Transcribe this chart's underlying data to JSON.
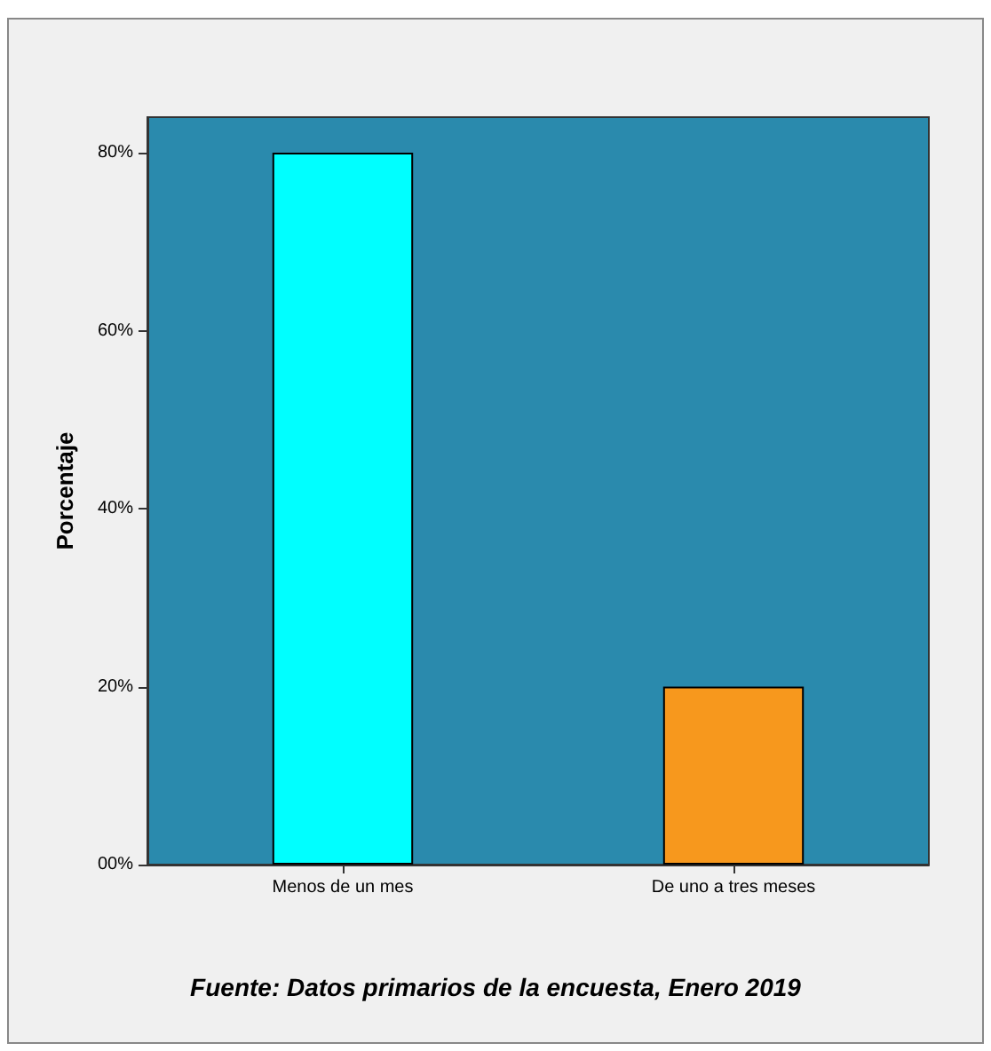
{
  "chart_data": {
    "type": "bar",
    "ylabel": "Porcentaje",
    "categories": [
      "Menos de un mes",
      "De uno a tres meses"
    ],
    "values": [
      80,
      20
    ],
    "colors": [
      "#00ffff",
      "#f7981d"
    ],
    "ylim": [
      0,
      84
    ],
    "yticks": [
      {
        "value": 0,
        "label": "00%"
      },
      {
        "value": 20,
        "label": "20%"
      },
      {
        "value": 40,
        "label": "40%"
      },
      {
        "value": 60,
        "label": "60%"
      },
      {
        "value": 80,
        "label": "80%"
      }
    ],
    "grid": false,
    "annotations": [
      "Fuente: Datos primarios de la encuesta, Enero 2019"
    ]
  }
}
